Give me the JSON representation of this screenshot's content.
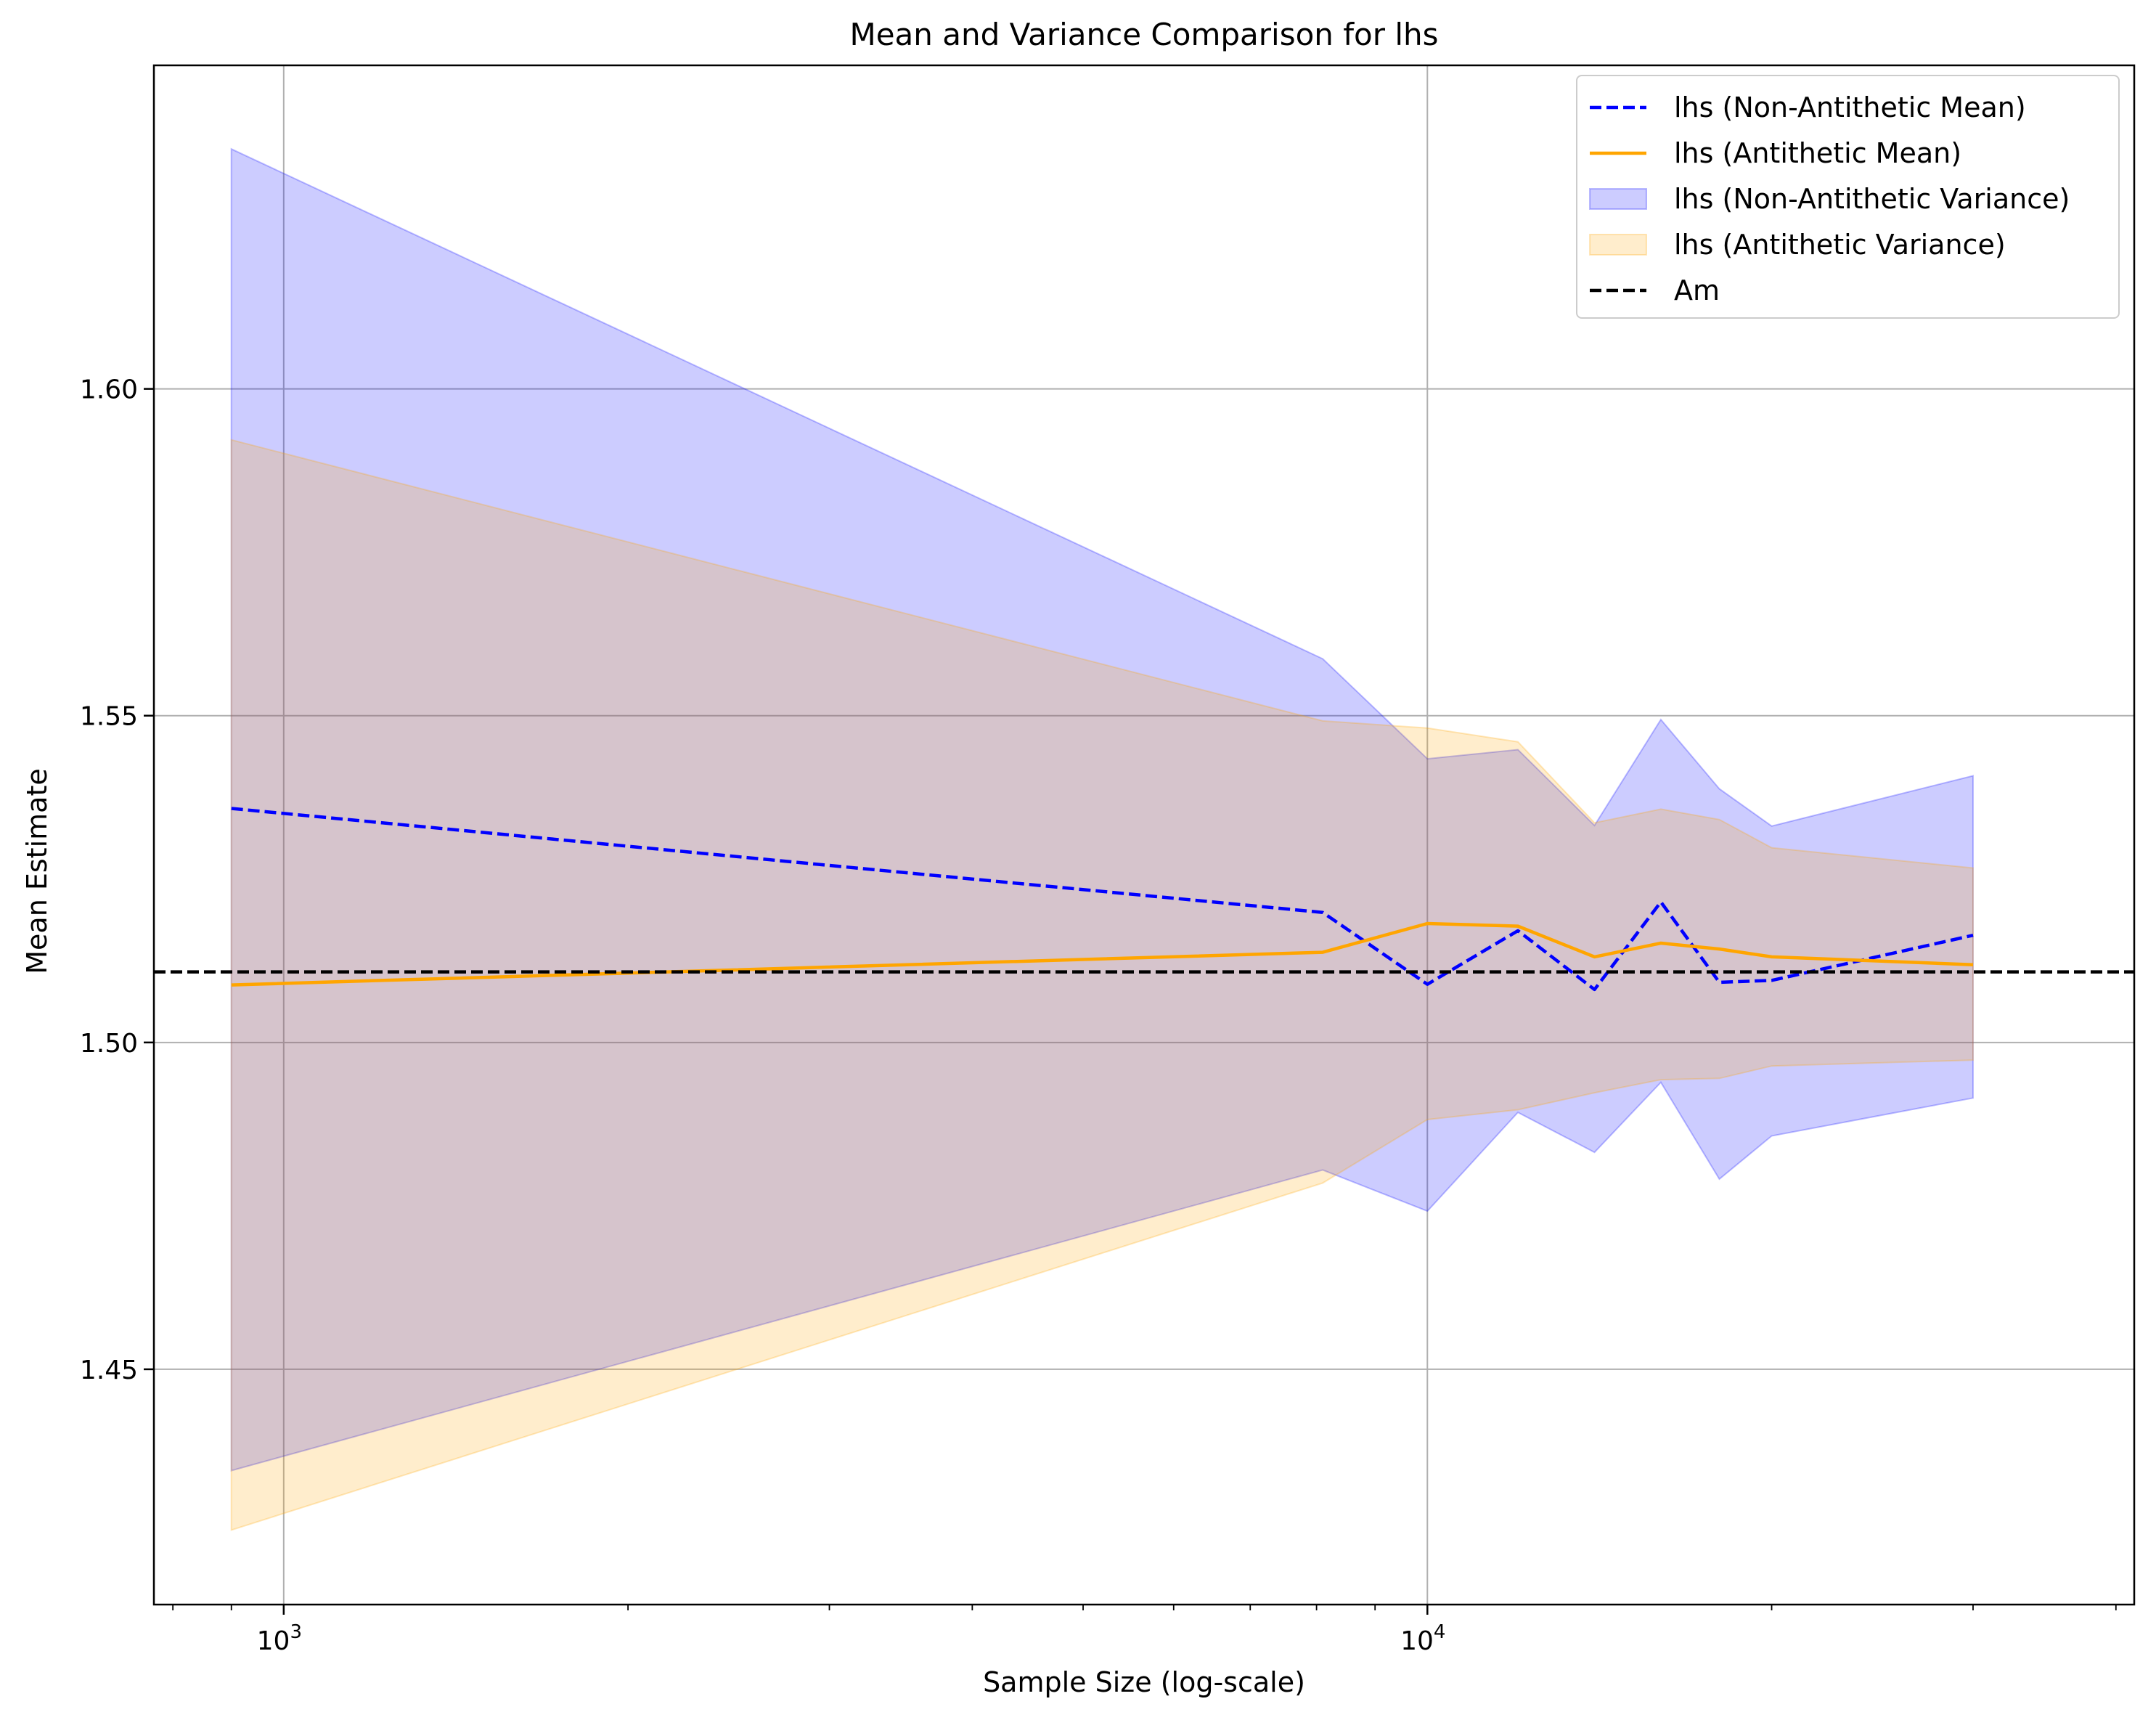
{
  "chart_data": {
    "type": "line",
    "title": "Mean and Variance Comparison for lhs",
    "xlabel": "Sample Size (log-scale)",
    "ylabel": "Mean Estimate",
    "xscale": "log",
    "xlim": [
      770,
      41500
    ],
    "ylim": [
      1.414,
      1.6495
    ],
    "grid": true,
    "legend_position": "top-right",
    "x_major_ticks": [
      {
        "value": 1000,
        "base": "10",
        "exp": "3"
      },
      {
        "value": 10000,
        "base": "10",
        "exp": "4"
      }
    ],
    "x_minor_ticks": [
      800,
      900,
      2000,
      3000,
      4000,
      5000,
      6000,
      7000,
      8000,
      9000,
      20000,
      30000,
      40000
    ],
    "y_ticks": [
      {
        "value": 1.45,
        "label": "1.45"
      },
      {
        "value": 1.5,
        "label": "1.50"
      },
      {
        "value": 1.55,
        "label": "1.55"
      },
      {
        "value": 1.6,
        "label": "1.60"
      }
    ],
    "x": [
      900,
      8100,
      10000,
      12000,
      14000,
      16000,
      18000,
      20000,
      30000
    ],
    "series": [
      {
        "name": "lhs (Non-Antithetic Mean)",
        "kind": "line",
        "style": "dashed",
        "color": "#0000ff",
        "values": [
          1.5358,
          1.5199,
          1.5089,
          1.5171,
          1.5081,
          1.5215,
          1.5092,
          1.5095,
          1.5164
        ]
      },
      {
        "name": "lhs (Antithetic Mean)",
        "kind": "line",
        "style": "solid",
        "color": "#ffa500",
        "values": [
          1.5088,
          1.5138,
          1.5182,
          1.5178,
          1.5131,
          1.5152,
          1.5143,
          1.5131,
          1.5119
        ]
      },
      {
        "name": "lhs (Non-Antithetic Variance)",
        "kind": "band",
        "color": "#0000ff",
        "opacity": 0.2,
        "lower": [
          1.4345,
          1.4805,
          1.4742,
          1.4893,
          1.4832,
          1.4939,
          1.4791,
          1.4857,
          1.4915
        ],
        "upper": [
          1.6367,
          1.5587,
          1.5434,
          1.5448,
          1.5332,
          1.5494,
          1.5388,
          1.5331,
          1.5408
        ]
      },
      {
        "name": "lhs (Antithetic Variance)",
        "kind": "band",
        "color": "#ffa500",
        "opacity": 0.2,
        "lower": [
          1.4254,
          1.4785,
          1.4882,
          1.4897,
          1.4923,
          1.4943,
          1.4945,
          1.4964,
          1.4973
        ],
        "upper": [
          1.5922,
          1.5492,
          1.5481,
          1.546,
          1.5336,
          1.5357,
          1.5341,
          1.5298,
          1.5267
        ]
      },
      {
        "name": "Am",
        "kind": "hline",
        "style": "dashed",
        "color": "#000000",
        "value": 1.5108
      }
    ],
    "legend_order": [
      0,
      1,
      2,
      3,
      4
    ]
  }
}
